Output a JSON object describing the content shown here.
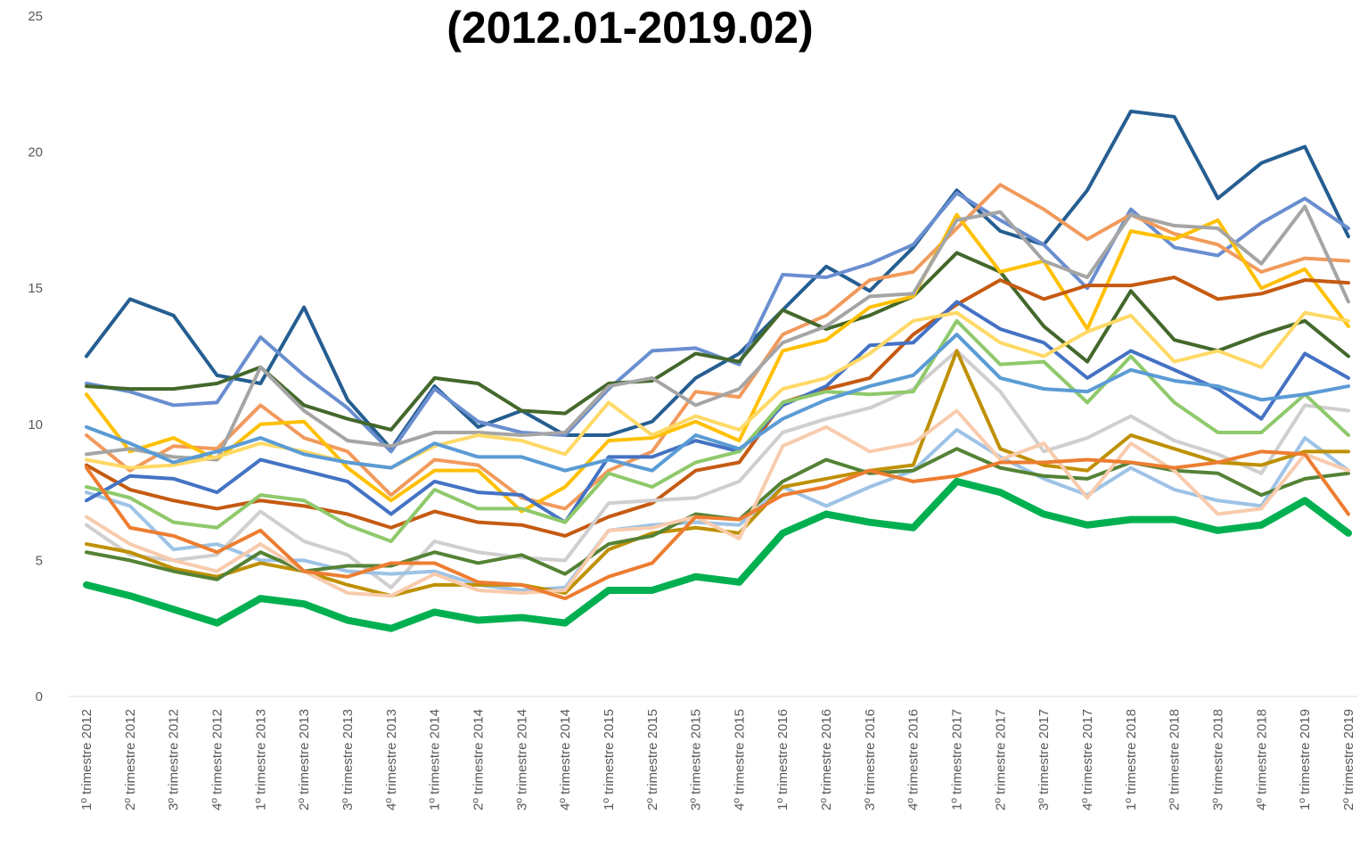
{
  "chart_data": {
    "type": "line",
    "title": "(2012.01-2019.02)",
    "categories": [
      "1º trimestre 2012",
      "2º trimestre 2012",
      "3º trimestre 2012",
      "4º trimestre 2012",
      "1º trimestre 2013",
      "2º trimestre 2013",
      "3º trimestre 2013",
      "4º trimestre 2013",
      "1º trimestre 2014",
      "2º trimestre 2014",
      "3º trimestre 2014",
      "4º trimestre 2014",
      "1º trimestre 2015",
      "2º trimestre 2015",
      "3º trimestre 2015",
      "4º trimestre 2015",
      "1º trimestre 2016",
      "2º trimestre 2016",
      "3º trimestre 2016",
      "4º trimestre 2016",
      "1º trimestre 2017",
      "2º trimestre 2017",
      "3º trimestre 2017",
      "4º trimestre 2017",
      "1º trimestre 2018",
      "2º trimestre 2018",
      "3º trimestre 2018",
      "4º trimestre 2018",
      "1º trimestre 2019",
      "2º trimestre 2019"
    ],
    "ylim": [
      0,
      25
    ],
    "yticks": [
      0,
      5,
      10,
      15,
      20,
      25
    ],
    "series": [
      {
        "color": "#255e91",
        "values": [
          12.5,
          14.6,
          14.0,
          11.8,
          11.5,
          14.3,
          10.9,
          9.1,
          11.4,
          9.9,
          10.5,
          9.6,
          9.6,
          10.1,
          11.7,
          12.6,
          14.2,
          15.8,
          14.9,
          16.5,
          18.6,
          17.1,
          16.6,
          18.6,
          21.5,
          21.3,
          18.3,
          19.6,
          20.2,
          16.9
        ]
      },
      {
        "color": "#698ed0",
        "values": [
          11.5,
          11.2,
          10.7,
          10.8,
          13.2,
          11.8,
          10.6,
          9.0,
          11.3,
          10.1,
          9.7,
          9.6,
          11.3,
          12.7,
          12.8,
          12.2,
          15.5,
          15.4,
          15.9,
          16.6,
          18.5,
          17.5,
          16.6,
          15.0,
          17.9,
          16.5,
          16.2,
          17.4,
          18.3,
          17.2
        ]
      },
      {
        "color": "#f19a5c",
        "values": [
          9.6,
          8.3,
          9.2,
          9.1,
          10.7,
          9.5,
          9.0,
          7.4,
          8.7,
          8.5,
          7.3,
          6.9,
          8.3,
          9.0,
          11.2,
          11.0,
          13.3,
          14.0,
          15.3,
          15.6,
          17.2,
          18.8,
          17.9,
          16.8,
          17.7,
          17.0,
          16.6,
          15.6,
          16.1,
          16.0
        ]
      },
      {
        "color": "#43682b",
        "values": [
          11.4,
          11.3,
          11.3,
          11.5,
          12.1,
          10.7,
          10.2,
          9.8,
          11.7,
          11.5,
          10.5,
          10.4,
          11.5,
          11.6,
          12.6,
          12.3,
          14.2,
          13.5,
          14.0,
          14.7,
          16.3,
          15.6,
          13.6,
          12.3,
          14.9,
          13.1,
          12.7,
          13.3,
          13.8,
          12.5
        ]
      },
      {
        "color": "#ffc000",
        "values": [
          11.1,
          9.0,
          9.5,
          8.7,
          10.0,
          10.1,
          8.4,
          7.2,
          8.3,
          8.3,
          6.8,
          7.7,
          9.4,
          9.5,
          10.1,
          9.4,
          12.7,
          13.1,
          14.3,
          14.7,
          17.7,
          15.6,
          16.0,
          13.5,
          17.1,
          16.8,
          17.5,
          15.0,
          15.7,
          13.6
        ]
      },
      {
        "color": "#a5a5a5",
        "values": [
          8.9,
          9.1,
          8.8,
          8.7,
          12.1,
          10.5,
          9.4,
          9.2,
          9.7,
          9.7,
          9.6,
          9.7,
          11.4,
          11.7,
          10.7,
          11.3,
          13.0,
          13.6,
          14.7,
          14.8,
          17.5,
          17.8,
          16.0,
          15.4,
          17.7,
          17.3,
          17.2,
          15.9,
          18.0,
          14.5
        ]
      },
      {
        "color": "#c55a11",
        "values": [
          8.5,
          7.6,
          7.2,
          6.9,
          7.2,
          7.0,
          6.7,
          6.2,
          6.8,
          6.4,
          6.3,
          5.9,
          6.6,
          7.1,
          8.3,
          8.6,
          10.8,
          11.3,
          11.7,
          13.3,
          14.4,
          15.3,
          14.6,
          15.1,
          15.1,
          15.4,
          14.6,
          14.8,
          15.3,
          15.2
        ]
      },
      {
        "color": "#d0cece",
        "values": [
          6.3,
          5.2,
          5.0,
          5.2,
          6.8,
          5.7,
          5.2,
          4.0,
          5.7,
          5.3,
          5.1,
          5.0,
          7.1,
          7.2,
          7.3,
          7.9,
          9.7,
          10.2,
          10.6,
          11.3,
          12.7,
          11.2,
          9.0,
          9.5,
          10.3,
          9.4,
          8.9,
          8.2,
          10.7,
          10.5
        ]
      },
      {
        "color": "#9dc3e6",
        "values": [
          7.5,
          7.0,
          5.4,
          5.6,
          5.0,
          5.0,
          4.6,
          4.5,
          4.6,
          4.1,
          3.9,
          4.0,
          6.1,
          6.3,
          6.4,
          6.3,
          7.7,
          7.0,
          7.7,
          8.3,
          9.8,
          8.8,
          8.0,
          7.4,
          8.4,
          7.6,
          7.2,
          7.0,
          9.5,
          8.3
        ]
      },
      {
        "color": "#bf9000",
        "values": [
          5.6,
          5.3,
          4.7,
          4.4,
          4.9,
          4.6,
          4.1,
          3.7,
          4.1,
          4.1,
          4.1,
          3.8,
          5.4,
          6.0,
          6.2,
          6.0,
          7.7,
          8.0,
          8.3,
          8.5,
          12.7,
          9.1,
          8.5,
          8.3,
          9.6,
          9.1,
          8.6,
          8.5,
          9.0,
          9.0
        ]
      },
      {
        "color": "#548235",
        "values": [
          5.3,
          5.0,
          4.6,
          4.3,
          5.3,
          4.6,
          4.8,
          4.8,
          5.3,
          4.9,
          5.2,
          4.5,
          5.6,
          5.9,
          6.7,
          6.5,
          7.9,
          8.7,
          8.2,
          8.3,
          9.1,
          8.4,
          8.1,
          8.0,
          8.6,
          8.3,
          8.2,
          7.4,
          8.0,
          8.2
        ]
      },
      {
        "color": "#4472c4",
        "values": [
          7.2,
          8.1,
          8.0,
          7.5,
          8.7,
          8.3,
          7.9,
          6.7,
          7.9,
          7.5,
          7.4,
          6.4,
          8.8,
          8.8,
          9.4,
          9.0,
          10.7,
          11.4,
          12.9,
          13.0,
          14.5,
          13.5,
          13.0,
          11.7,
          12.7,
          12.0,
          11.3,
          10.2,
          12.6,
          11.7
        ]
      },
      {
        "color": "#8fc96b",
        "values": [
          7.7,
          7.3,
          6.4,
          6.2,
          7.4,
          7.2,
          6.3,
          5.7,
          7.6,
          6.9,
          6.9,
          6.4,
          8.2,
          7.7,
          8.6,
          9.0,
          10.8,
          11.2,
          11.1,
          11.2,
          13.8,
          12.2,
          12.3,
          10.8,
          12.5,
          10.8,
          9.7,
          9.7,
          11.1,
          9.6
        ]
      },
      {
        "color": "#ffd966",
        "values": [
          8.7,
          8.4,
          8.5,
          8.8,
          9.3,
          9.0,
          8.6,
          8.4,
          9.2,
          9.6,
          9.4,
          8.9,
          10.8,
          9.6,
          10.3,
          9.8,
          11.3,
          11.7,
          12.6,
          13.8,
          14.1,
          13.0,
          12.5,
          13.4,
          14.0,
          12.3,
          12.7,
          12.1,
          14.1,
          13.8
        ]
      },
      {
        "color": "#f8cbad",
        "values": [
          6.6,
          5.6,
          5.0,
          4.6,
          5.6,
          4.6,
          3.8,
          3.7,
          4.5,
          3.9,
          3.8,
          3.9,
          6.1,
          6.2,
          6.6,
          5.8,
          9.2,
          9.9,
          9.0,
          9.3,
          10.5,
          8.7,
          9.3,
          7.3,
          9.3,
          8.3,
          6.7,
          6.9,
          8.9,
          8.3
        ]
      },
      {
        "color": "#ed7d31",
        "values": [
          8.4,
          6.2,
          5.9,
          5.3,
          6.1,
          4.6,
          4.4,
          4.9,
          4.9,
          4.2,
          4.1,
          3.6,
          4.4,
          4.9,
          6.6,
          6.5,
          7.4,
          7.7,
          8.3,
          7.9,
          8.1,
          8.6,
          8.6,
          8.7,
          8.6,
          8.4,
          8.6,
          9.0,
          8.9,
          6.7
        ]
      },
      {
        "color": "#5b9bd5",
        "values": [
          9.9,
          9.3,
          8.6,
          9.0,
          9.5,
          8.9,
          8.6,
          8.4,
          9.3,
          8.8,
          8.8,
          8.3,
          8.7,
          8.3,
          9.6,
          9.1,
          10.2,
          10.9,
          11.4,
          11.8,
          13.3,
          11.7,
          11.3,
          11.2,
          12.0,
          11.6,
          11.4,
          10.9,
          11.1,
          11.4
        ]
      },
      {
        "color": "#00b050",
        "values": [
          4.1,
          3.7,
          3.2,
          2.7,
          3.6,
          3.4,
          2.8,
          2.5,
          3.1,
          2.8,
          2.9,
          2.7,
          3.9,
          3.9,
          4.4,
          4.2,
          6.0,
          6.7,
          6.4,
          6.2,
          7.9,
          7.5,
          6.7,
          6.3,
          6.5,
          6.5,
          6.1,
          6.3,
          7.2,
          6.0
        ]
      }
    ]
  }
}
